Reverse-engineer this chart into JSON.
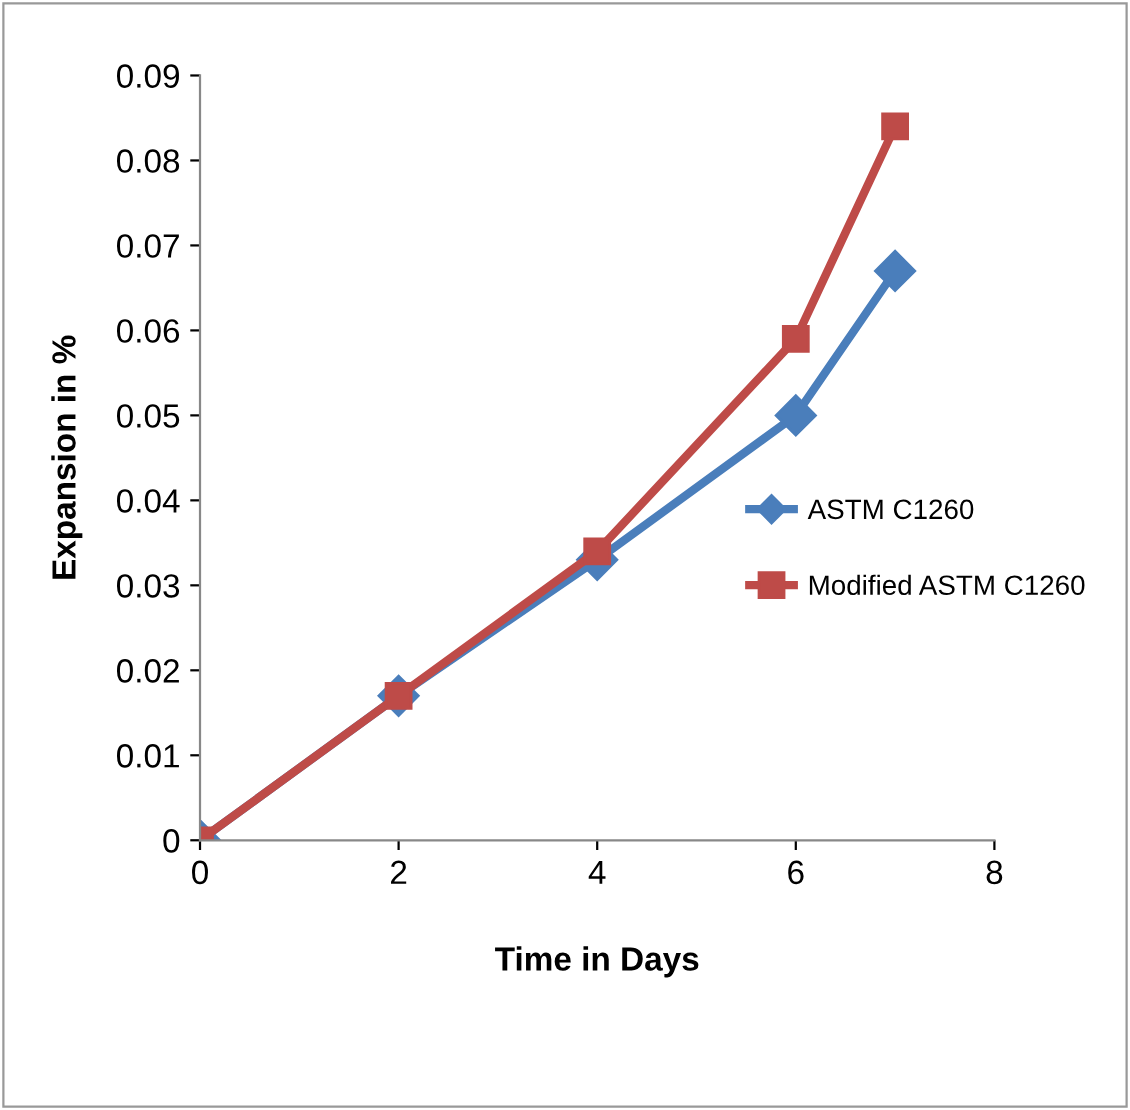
{
  "chart_data": {
    "type": "line",
    "xlabel": "Time in Days",
    "ylabel": "Expansion in %",
    "xlim": [
      0,
      8
    ],
    "xticks": [
      0,
      2,
      4,
      6,
      8
    ],
    "ylim": [
      0,
      0.09
    ],
    "yticks": [
      0,
      0.01,
      0.02,
      0.03,
      0.04,
      0.05,
      0.06,
      0.07,
      0.08,
      0.09
    ],
    "grid": false,
    "legend": "right",
    "line_style": "solid",
    "series": [
      {
        "name": "ASTM C1260",
        "color": "#4a7ebb",
        "marker": "diamond",
        "x": [
          0,
          2,
          4,
          6,
          7
        ],
        "values": [
          0,
          0.017,
          0.033,
          0.05,
          0.067
        ]
      },
      {
        "name": "Modified ASTM C1260",
        "color": "#be4b48",
        "marker": "square",
        "x": [
          0,
          2,
          4,
          6,
          7
        ],
        "values": [
          0,
          0.017,
          0.034,
          0.059,
          0.084
        ]
      }
    ]
  }
}
